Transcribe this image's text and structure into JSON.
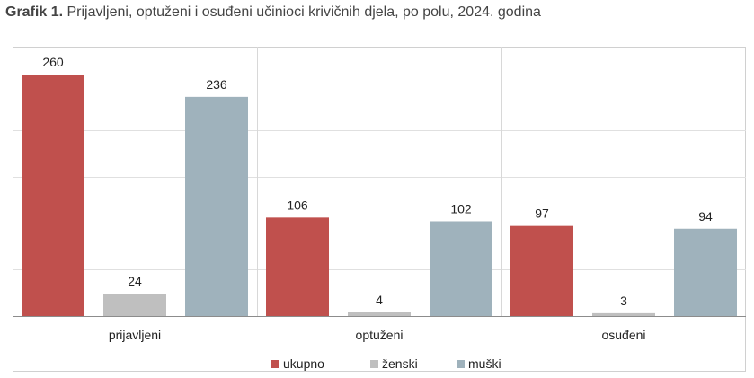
{
  "header": {
    "label": "Grafik 1.",
    "text": "Prijavljeni, optuženi i osuđeni učinioci krivičnih djela, po polu, 2024. godina"
  },
  "chart_data": {
    "type": "bar",
    "categories": [
      "prijavljeni",
      "optuženi",
      "osuđeni"
    ],
    "series": [
      {
        "name": "ukupno",
        "values": [
          260,
          106,
          97
        ],
        "color": "#c0504d"
      },
      {
        "name": "ženski",
        "values": [
          24,
          4,
          3
        ],
        "color": "#bfbfbf"
      },
      {
        "name": "muški",
        "values": [
          236,
          102,
          94
        ],
        "color": "#9fb2bc"
      }
    ],
    "ylim": [
      0,
      290
    ],
    "grid": true,
    "legend": "bottom"
  }
}
